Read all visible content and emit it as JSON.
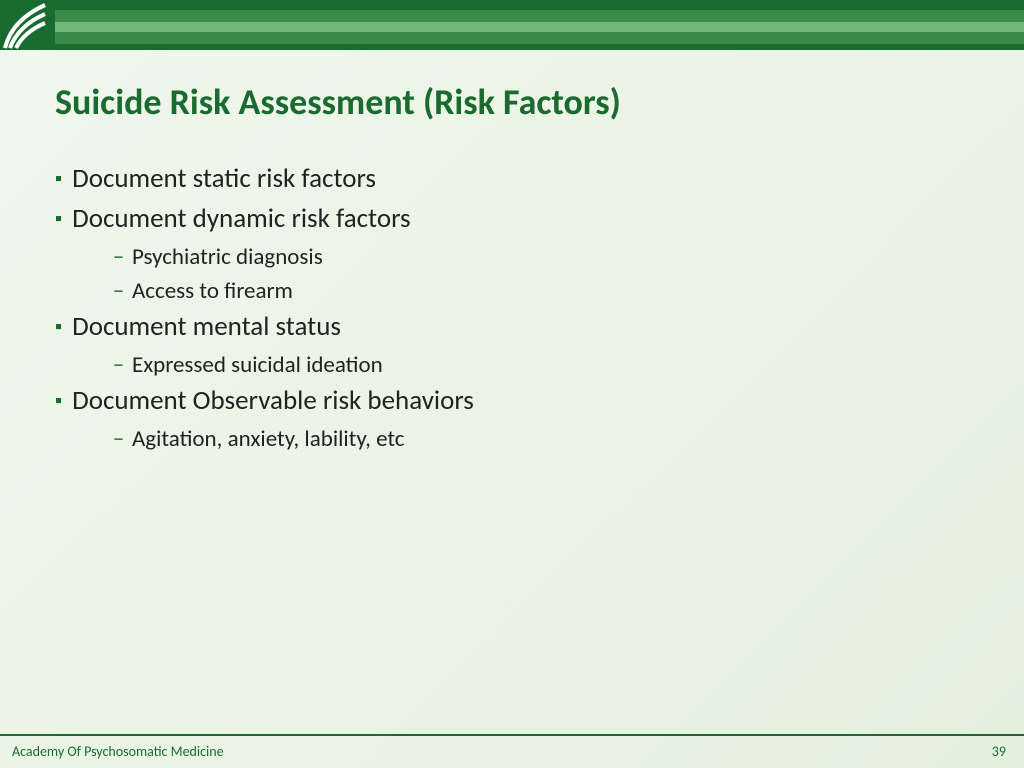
{
  "title": "Suicide Risk Assessment (Risk Factors)",
  "bullets": [
    {
      "text": "Document static risk factors",
      "subs": []
    },
    {
      "text": "Document dynamic risk factors",
      "subs": [
        "Psychiatric diagnosis",
        "Access to firearm"
      ]
    },
    {
      "text": "Document mental status",
      "subs": [
        "Expressed suicidal ideation"
      ]
    },
    {
      "text": "Document Observable risk behaviors",
      "subs": [
        "Agitation, anxiety, lability, etc"
      ]
    }
  ],
  "footer": "Academy Of Psychosomatic Medicine",
  "page": "39",
  "colors": {
    "brand": "#1a6b2f",
    "text": "#222222"
  }
}
